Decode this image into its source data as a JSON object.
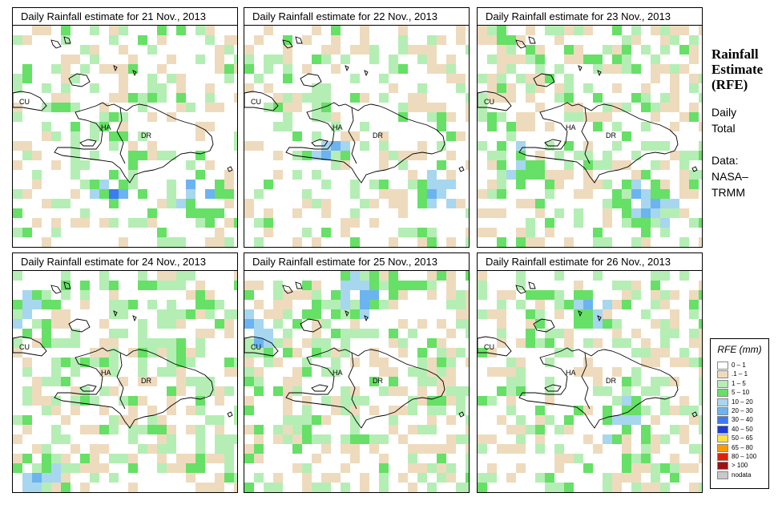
{
  "side": {
    "title_lines": [
      "Rainfall",
      "Estimate",
      "(RFE)"
    ],
    "subtitle_lines": [
      "Daily",
      "Total"
    ],
    "source_lines": [
      "Data:",
      "NASA–",
      "TRMM"
    ]
  },
  "panels": [
    {
      "title": "Daily Rainfall estimate for  21 Nov., 2013"
    },
    {
      "title": "Daily Rainfall estimate for  22 Nov., 2013"
    },
    {
      "title": "Daily Rainfall estimate for  23 Nov., 2013"
    },
    {
      "title": "Daily Rainfall estimate for  24 Nov., 2013"
    },
    {
      "title": "Daily Rainfall estimate for  25 Nov., 2013"
    },
    {
      "title": "Daily Rainfall estimate for  26 Nov., 2013"
    }
  ],
  "map_labels": {
    "cu": "CU",
    "ha": "HA",
    "dr": "DR"
  },
  "legend": {
    "title": "RFE (mm)",
    "items": [
      {
        "label": "0 – 1",
        "color": "#ffffff"
      },
      {
        "label": ".1 – 1",
        "color": "#eedbbd"
      },
      {
        "label": "1 – 5",
        "color": "#b4eeb4"
      },
      {
        "label": "5 – 10",
        "color": "#66e066"
      },
      {
        "label": "10 – 20",
        "color": "#a7d6ef"
      },
      {
        "label": "20 – 30",
        "color": "#6cb4ef"
      },
      {
        "label": "30 – 40",
        "color": "#3d7cef"
      },
      {
        "label": "40 – 50",
        "color": "#1e3cd8"
      },
      {
        "label": "50 – 65",
        "color": "#ffe14a"
      },
      {
        "label": "65 – 80",
        "color": "#ff9900"
      },
      {
        "label": "80 – 100",
        "color": "#e0200a"
      },
      {
        "label": "> 100",
        "color": "#a01010"
      },
      {
        "label": "nodata",
        "color": "#c8c8c8"
      }
    ]
  }
}
